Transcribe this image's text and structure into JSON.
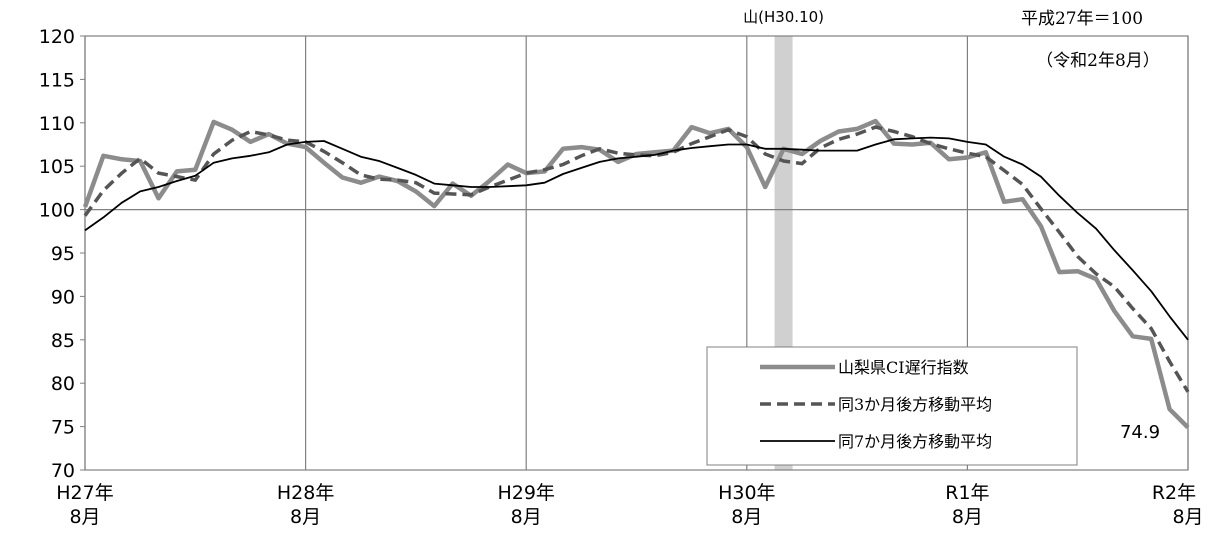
{
  "chart_data": {
    "type": "line",
    "title": "",
    "xlabel": "",
    "ylabel": "",
    "ylim": [
      70,
      120
    ],
    "yticks": [
      "120",
      "115",
      "110",
      "105",
      "100",
      "95",
      "90",
      "85",
      "80",
      "75",
      "70"
    ],
    "x_tick_labels": [
      {
        "year": "H27年",
        "month": "8月"
      },
      {
        "year": "H28年",
        "month": "8月"
      },
      {
        "year": "H29年",
        "month": "8月"
      },
      {
        "year": "H30年",
        "month": "8月"
      },
      {
        "year": "R1年",
        "month": "8月"
      },
      {
        "year": "R2年",
        "month": "8月"
      }
    ],
    "x_months": [
      "H27.8",
      "H27.9",
      "H27.10",
      "H27.11",
      "H27.12",
      "H28.1",
      "H28.2",
      "H28.3",
      "H28.4",
      "H28.5",
      "H28.6",
      "H28.7",
      "H28.8",
      "H28.9",
      "H28.10",
      "H28.11",
      "H28.12",
      "H29.1",
      "H29.2",
      "H29.3",
      "H29.4",
      "H29.5",
      "H29.6",
      "H29.7",
      "H29.8",
      "H29.9",
      "H29.10",
      "H29.11",
      "H29.12",
      "H30.1",
      "H30.2",
      "H30.3",
      "H30.4",
      "H30.5",
      "H30.6",
      "H30.7",
      "H30.8",
      "H30.9",
      "H30.10",
      "H30.11",
      "H30.12",
      "H31.1",
      "H31.2",
      "H31.3",
      "H31.4",
      "R1.5",
      "R1.6",
      "R1.7",
      "R1.8",
      "R1.9",
      "R1.10",
      "R1.11",
      "R1.12",
      "R2.1",
      "R2.2",
      "R2.3",
      "R2.4",
      "R2.5",
      "R2.6",
      "R2.7",
      "R2.8"
    ],
    "series": [
      {
        "name": "山梨県CI遅行指数",
        "style": "thick-gray",
        "color": "#8c8c8c",
        "values": [
          100.3,
          106.2,
          105.8,
          105.6,
          101.3,
          104.4,
          104.6,
          110.1,
          109.2,
          107.8,
          108.7,
          107.6,
          107.2,
          105.4,
          103.7,
          103.1,
          103.8,
          103.3,
          102.1,
          100.4,
          103.0,
          101.6,
          103.3,
          105.2,
          104.2,
          104.4,
          107.0,
          107.2,
          106.9,
          105.5,
          106.4,
          106.6,
          106.8,
          109.5,
          108.8,
          109.3,
          107.2,
          102.6,
          107.0,
          106.4,
          107.9,
          109.0,
          109.3,
          110.2,
          107.6,
          107.5,
          107.7,
          105.8,
          106.0,
          106.6,
          100.9,
          101.2,
          98.1,
          92.8,
          92.9,
          92.0,
          88.3,
          85.4,
          85.1,
          77.0,
          74.9
        ]
      },
      {
        "name": "同3か月後方移動平均",
        "style": "dashed",
        "color": "#555555",
        "values": [
          99.3,
          102.2,
          104.2,
          105.9,
          104.2,
          103.8,
          103.4,
          106.4,
          108.0,
          109.0,
          108.6,
          108.0,
          107.8,
          106.7,
          105.4,
          104.0,
          103.5,
          103.4,
          103.1,
          101.9,
          101.8,
          101.7,
          102.6,
          103.4,
          104.2,
          104.6,
          105.2,
          106.2,
          107.0,
          106.5,
          106.3,
          106.2,
          106.6,
          107.6,
          108.4,
          109.2,
          108.4,
          106.4,
          105.6,
          105.3,
          107.1,
          108.1,
          108.7,
          109.5,
          109.0,
          108.4,
          107.6,
          107.0,
          106.5,
          106.1,
          104.5,
          102.9,
          100.1,
          97.4,
          94.6,
          92.6,
          91.1,
          88.6,
          86.3,
          82.5,
          79.0
        ]
      },
      {
        "name": "同7か月後方移動平均",
        "style": "solid-black",
        "color": "#000000",
        "values": [
          97.6,
          99.1,
          100.8,
          102.1,
          102.6,
          103.3,
          103.9,
          105.4,
          105.9,
          106.2,
          106.6,
          107.5,
          107.8,
          107.9,
          107.0,
          106.1,
          105.6,
          104.8,
          104.0,
          103.0,
          102.8,
          102.6,
          102.6,
          102.7,
          102.8,
          103.1,
          104.1,
          104.8,
          105.5,
          105.9,
          106.1,
          106.3,
          106.8,
          107.1,
          107.3,
          107.5,
          107.5,
          107.0,
          107.0,
          106.9,
          106.8,
          106.8,
          106.8,
          107.5,
          108.1,
          108.2,
          108.3,
          108.2,
          107.8,
          107.5,
          106.1,
          105.2,
          103.8,
          101.6,
          99.6,
          97.8,
          95.3,
          93.0,
          90.6,
          87.7,
          85.0
        ]
      }
    ],
    "peak_band": {
      "label": "山(H30.10)",
      "month": "H30.10"
    },
    "base_note": "平成27年＝100",
    "period_note": "（令和2年8月）",
    "last_value_label": "74.9",
    "legend_position": "bottom-right",
    "grid": true
  }
}
